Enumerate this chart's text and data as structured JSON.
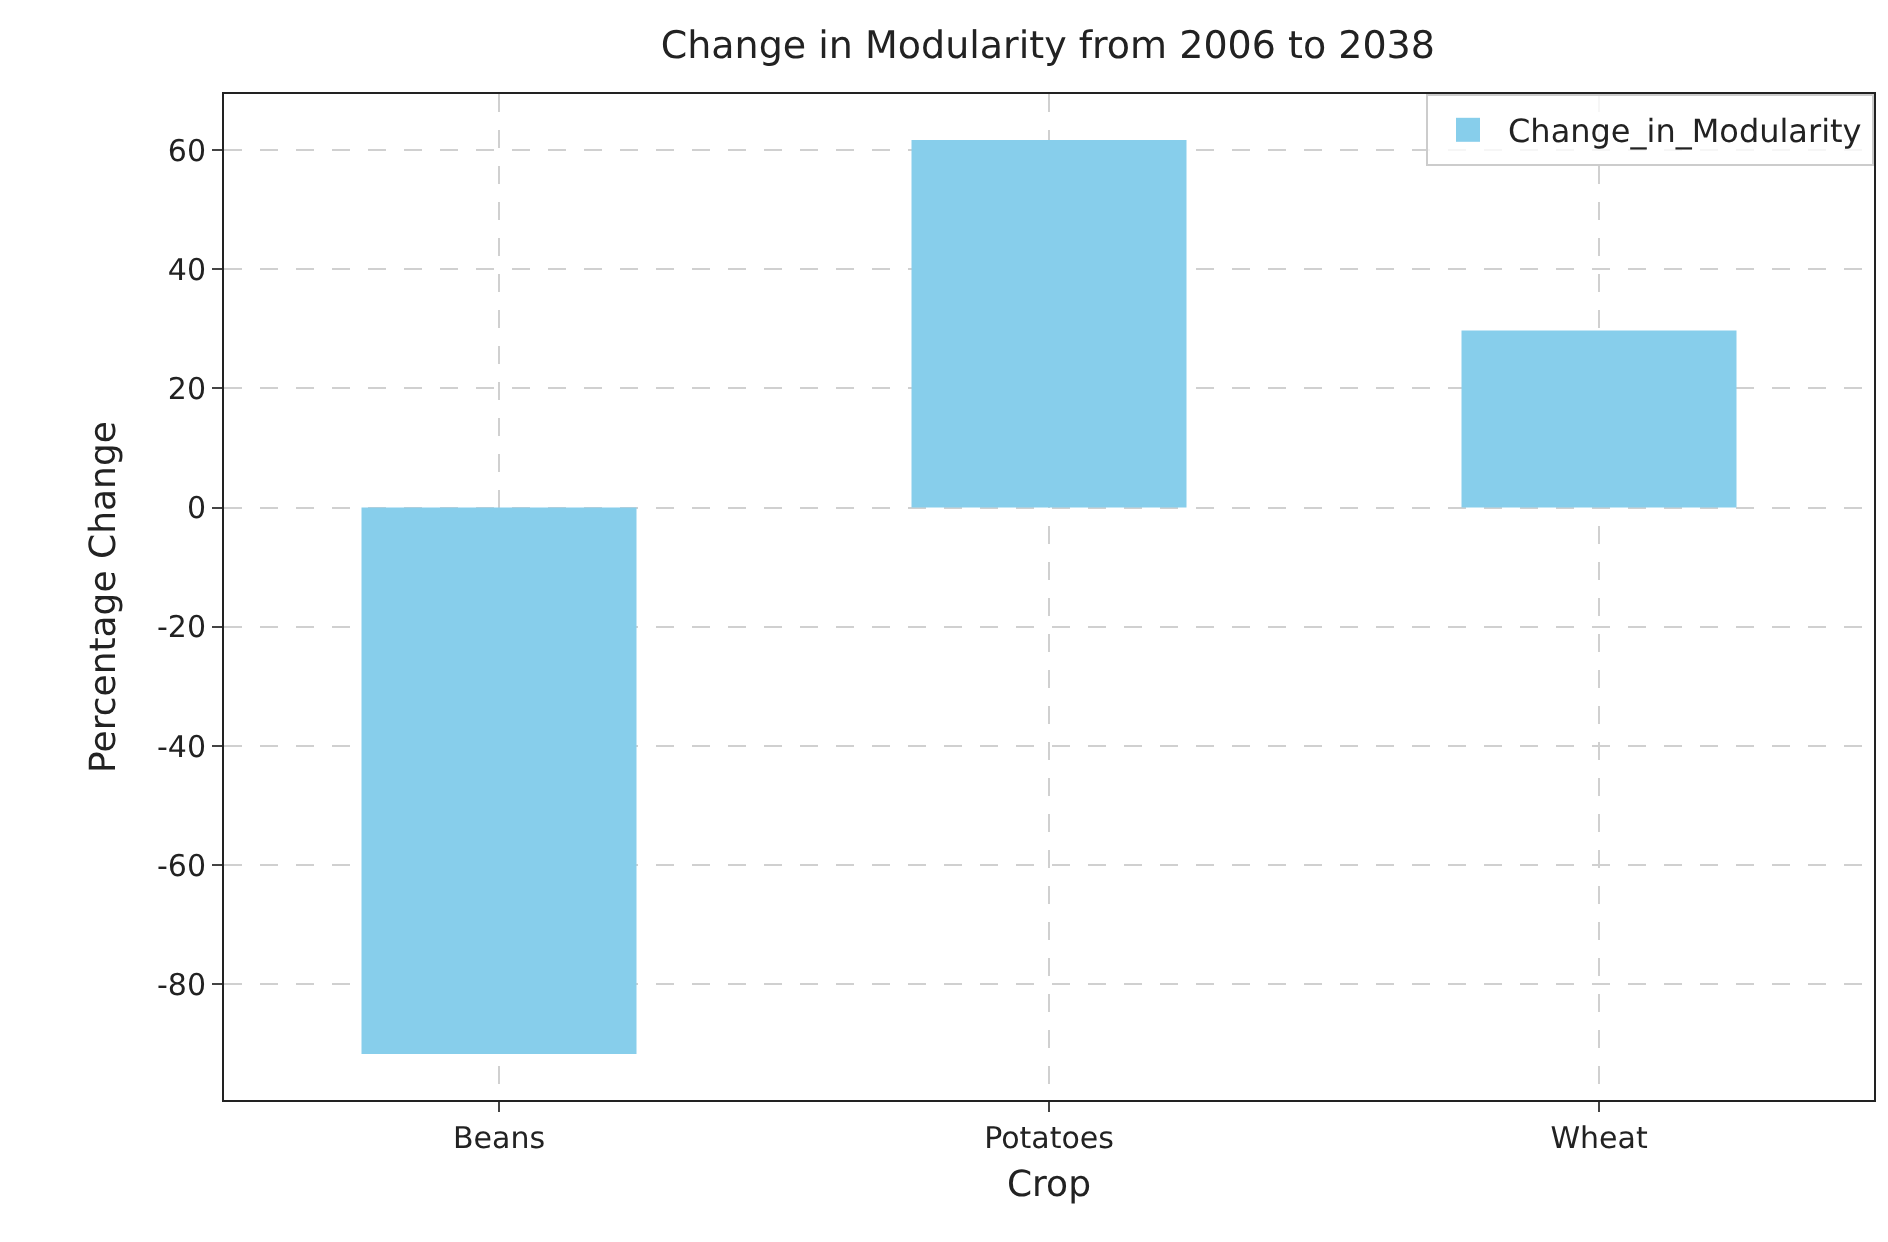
{
  "chart_data": {
    "type": "bar",
    "title": "Change in Modularity from 2006 to 2038",
    "xlabel": "Crop",
    "ylabel": "Percentage Change",
    "categories": [
      "Beans",
      "Potatoes",
      "Wheat"
    ],
    "series": [
      {
        "name": "Change_in_Modularity",
        "color": "#87ceeb",
        "values": [
          -91.7,
          61.7,
          29.7
        ]
      }
    ],
    "ylim": [
      -99.4,
      69.4
    ],
    "yticks": [
      -80,
      -60,
      -40,
      -20,
      0,
      20,
      40,
      60
    ],
    "grid": true,
    "legend": "top right"
  }
}
